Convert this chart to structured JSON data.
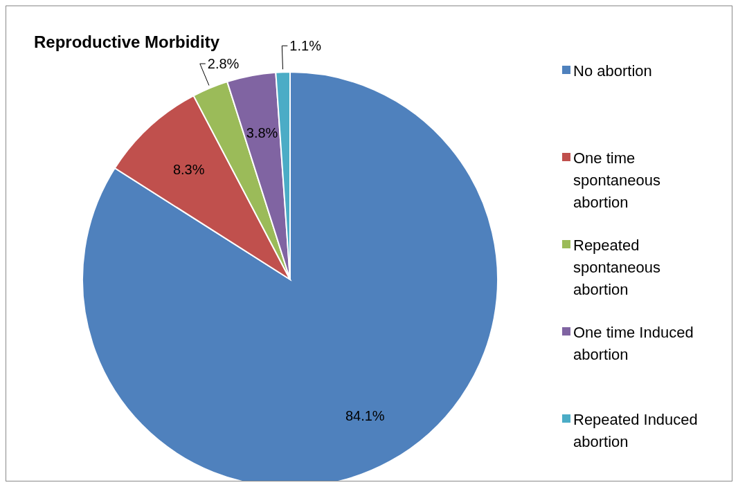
{
  "chart_data": {
    "type": "pie",
    "title": "Reproductive Morbidity",
    "categories": [
      "No abortion",
      "One time spontaneous abortion",
      "Repeated spontaneous abortion",
      "One time Induced abortion",
      "Repeated Induced abortion"
    ],
    "values": [
      84.1,
      8.3,
      2.8,
      3.8,
      1.1
    ],
    "value_labels": [
      "84.1%",
      "8.3%",
      "2.8%",
      "3.8%",
      "1.1%"
    ],
    "colors": [
      "#4f81bd",
      "#c0504d",
      "#9bbb59",
      "#8064a2",
      "#4bacc6"
    ],
    "legend": "right"
  }
}
